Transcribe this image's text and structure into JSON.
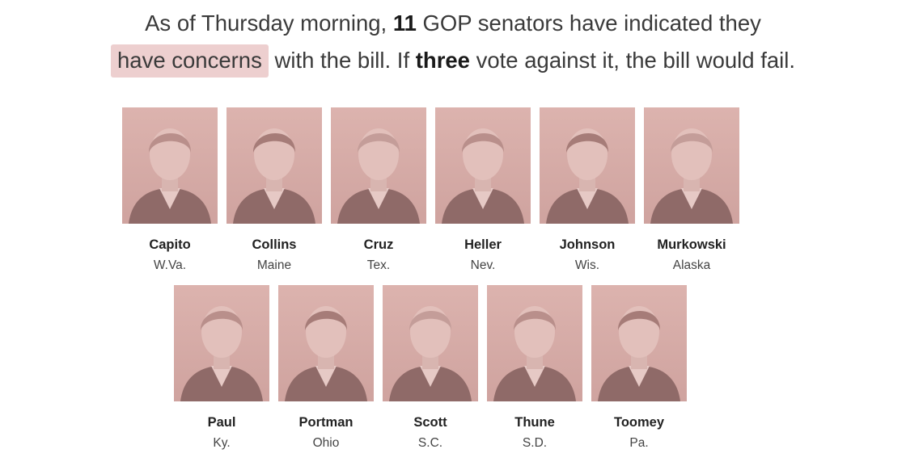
{
  "headline": {
    "line1_prefix": "As of Thursday morning, ",
    "line1_count": "11",
    "line1_suffix": " GOP senators have indicated they",
    "line2_highlight": "have concerns",
    "line2_middle": " with the bill. If ",
    "line2_bold": "three",
    "line2_suffix": " vote against it, the bill would fail."
  },
  "colors": {
    "highlight": "#edcfcf",
    "photo_tint": "#d4aaa6"
  },
  "senators_row1": [
    {
      "name": "Capito",
      "state": "W.Va."
    },
    {
      "name": "Collins",
      "state": "Maine"
    },
    {
      "name": "Cruz",
      "state": "Tex."
    },
    {
      "name": "Heller",
      "state": "Nev."
    },
    {
      "name": "Johnson",
      "state": "Wis."
    },
    {
      "name": "Murkowski",
      "state": "Alaska"
    }
  ],
  "senators_row2": [
    {
      "name": "Paul",
      "state": "Ky."
    },
    {
      "name": "Portman",
      "state": "Ohio"
    },
    {
      "name": "Scott",
      "state": "S.C."
    },
    {
      "name": "Thune",
      "state": "S.D."
    },
    {
      "name": "Toomey",
      "state": "Pa."
    }
  ]
}
